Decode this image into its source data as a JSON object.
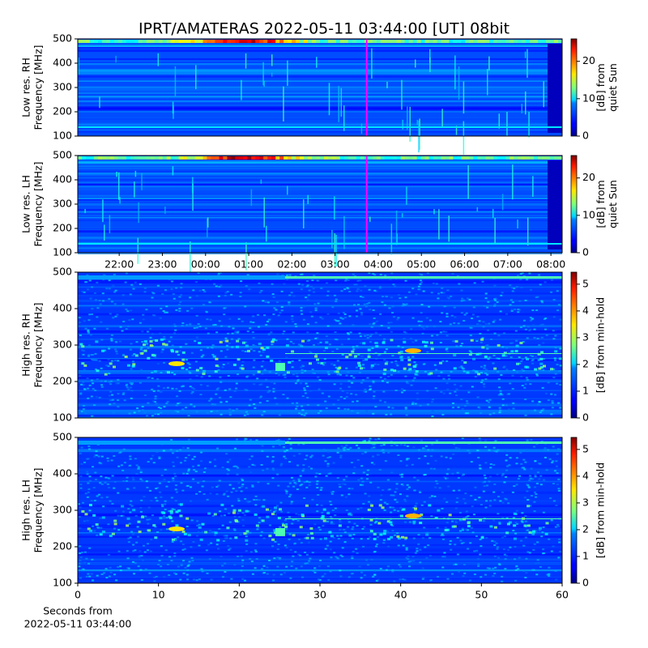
{
  "title": "IPRT/AMATERAS 2022-05-11 03:44:00 [UT]   08bit",
  "chart_data": [
    {
      "type": "heatmap",
      "ylabel": [
        "Low res. RH",
        "Frequency [MHz]"
      ],
      "xlim": [
        21.04,
        32.26
      ],
      "ylim": [
        100,
        500
      ],
      "yticks": [
        100,
        200,
        300,
        400,
        500
      ],
      "marker": 27.733,
      "marker_color": "#ff00ff",
      "colorbar": {
        "label": [
          "[dB] from",
          "quiet Sun"
        ],
        "lim": [
          0,
          26
        ],
        "ticks": [
          0,
          10,
          20
        ]
      }
    },
    {
      "type": "heatmap",
      "ylabel": [
        "Low res. LH",
        "Frequency [MHz]"
      ],
      "xlim": [
        21.04,
        32.26
      ],
      "xticks": [
        {
          "value": 22,
          "label": "22:00"
        },
        {
          "value": 23,
          "label": "23:00"
        },
        {
          "value": 24,
          "label": "00:00"
        },
        {
          "value": 25,
          "label": "01:00"
        },
        {
          "value": 26,
          "label": "02:00"
        },
        {
          "value": 27,
          "label": "03:00"
        },
        {
          "value": 28,
          "label": "04:00"
        },
        {
          "value": 29,
          "label": "05:00"
        },
        {
          "value": 30,
          "label": "06:00"
        },
        {
          "value": 31,
          "label": "07:00"
        },
        {
          "value": 32,
          "label": "08:00"
        }
      ],
      "ylim": [
        100,
        500
      ],
      "yticks": [
        100,
        200,
        300,
        400,
        500
      ],
      "marker": 27.733,
      "marker_color": "#ff00ff",
      "colorbar": {
        "label": [
          "[dB] from",
          "quiet Sun"
        ],
        "lim": [
          0,
          26
        ],
        "ticks": [
          0,
          10,
          20
        ]
      }
    },
    {
      "type": "heatmap",
      "ylabel": [
        "High res. RH",
        "Frequency [MHz]"
      ],
      "xlim": [
        0,
        60
      ],
      "ylim": [
        100,
        500
      ],
      "yticks": [
        100,
        200,
        300,
        400,
        500
      ],
      "colorbar": {
        "label": [
          "[dB] from min-hold"
        ],
        "lim": [
          0,
          5.45
        ],
        "ticks": [
          0,
          1,
          2,
          3,
          4,
          5
        ]
      }
    },
    {
      "type": "heatmap",
      "ylabel": [
        "High res. LH",
        "Frequency [MHz]"
      ],
      "xlabel": [
        "Seconds from",
        "2022-05-11 03:44:00"
      ],
      "xlim": [
        0,
        60
      ],
      "xticks": [
        0,
        10,
        20,
        30,
        40,
        50,
        60
      ],
      "ylim": [
        100,
        500
      ],
      "yticks": [
        100,
        200,
        300,
        400,
        500
      ],
      "colorbar": {
        "label": [
          "[dB] from min-hold"
        ],
        "lim": [
          0,
          5.45
        ],
        "ticks": [
          0,
          1,
          2,
          3,
          4,
          5
        ]
      }
    }
  ]
}
